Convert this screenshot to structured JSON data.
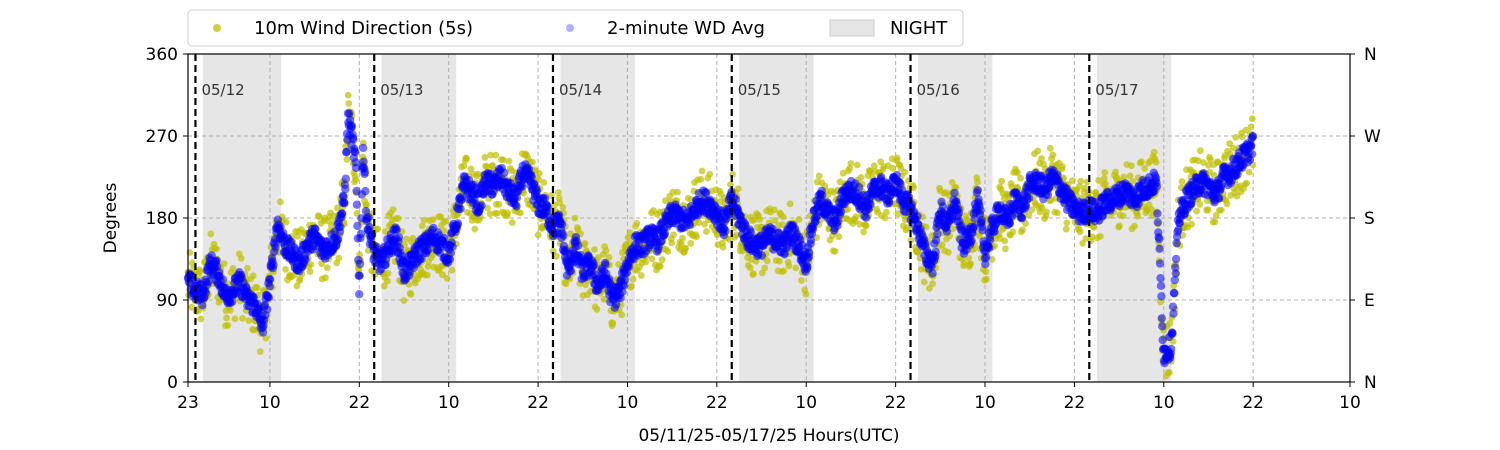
{
  "chart_data": {
    "type": "scatter",
    "xlabel": "05/11/25-05/17/25  Hours(UTC)",
    "ylabel": "Degrees",
    "xlim": [
      -1,
      155
    ],
    "ylim": [
      0,
      360
    ],
    "x_ticks": [
      {
        "t": -1,
        "label": "23"
      },
      {
        "t": 10,
        "label": "10"
      },
      {
        "t": 22,
        "label": "22"
      },
      {
        "t": 34,
        "label": "10"
      },
      {
        "t": 46,
        "label": "22"
      },
      {
        "t": 58,
        "label": "10"
      },
      {
        "t": 70,
        "label": "22"
      },
      {
        "t": 82,
        "label": "10"
      },
      {
        "t": 94,
        "label": "22"
      },
      {
        "t": 106,
        "label": "10"
      },
      {
        "t": 118,
        "label": "22"
      },
      {
        "t": 130,
        "label": "10"
      },
      {
        "t": 142,
        "label": "22"
      },
      {
        "t": 155,
        "label": "10"
      }
    ],
    "y_ticks": [
      0,
      90,
      180,
      270,
      360
    ],
    "y_right_ticks": [
      {
        "v": 0,
        "label": "N"
      },
      {
        "v": 90,
        "label": "E"
      },
      {
        "v": 180,
        "label": "S"
      },
      {
        "v": 270,
        "label": "W"
      },
      {
        "v": 360,
        "label": "N"
      }
    ],
    "grid": true,
    "legend_position": "top-left, above plot",
    "night_shading": [
      [
        1,
        11.5
      ],
      [
        25,
        35
      ],
      [
        49,
        59
      ],
      [
        73,
        83
      ],
      [
        97,
        107
      ],
      [
        121,
        131
      ]
    ],
    "day_markers": [
      {
        "t": 0,
        "label": "05/12"
      },
      {
        "t": 24,
        "label": "05/13"
      },
      {
        "t": 48,
        "label": "05/14"
      },
      {
        "t": 72,
        "label": "05/15"
      },
      {
        "t": 96,
        "label": "05/16"
      },
      {
        "t": 120,
        "label": "05/17"
      }
    ],
    "series": [
      {
        "name": "10m Wind Direction (5s)",
        "color": "#bfbf00",
        "marker": "circle",
        "spread_deg": 35,
        "trace": [
          [
            -1,
            110
          ],
          [
            0,
            100
          ],
          [
            1,
            95
          ],
          [
            2,
            130
          ],
          [
            3,
            120
          ],
          [
            4,
            95
          ],
          [
            5,
            100
          ],
          [
            6,
            110
          ],
          [
            7,
            90
          ],
          [
            8,
            85
          ],
          [
            9,
            60
          ],
          [
            10,
            110
          ],
          [
            11,
            175
          ],
          [
            12,
            150
          ],
          [
            13,
            140
          ],
          [
            14,
            130
          ],
          [
            15,
            150
          ],
          [
            16,
            160
          ],
          [
            17,
            145
          ],
          [
            18,
            150
          ],
          [
            19,
            160
          ],
          [
            20,
            200
          ],
          [
            20.5,
            290
          ],
          [
            21,
            270
          ],
          [
            21.5,
            240
          ],
          [
            22,
            100
          ],
          [
            22.5,
            260
          ],
          [
            23,
            180
          ],
          [
            24,
            140
          ],
          [
            25,
            130
          ],
          [
            26,
            150
          ],
          [
            27,
            160
          ],
          [
            28,
            120
          ],
          [
            29,
            130
          ],
          [
            30,
            145
          ],
          [
            31,
            150
          ],
          [
            32,
            160
          ],
          [
            33,
            150
          ],
          [
            34,
            140
          ],
          [
            35,
            175
          ],
          [
            36,
            215
          ],
          [
            37,
            210
          ],
          [
            38,
            195
          ],
          [
            39,
            220
          ],
          [
            40,
            215
          ],
          [
            41,
            225
          ],
          [
            42,
            210
          ],
          [
            43,
            200
          ],
          [
            44,
            230
          ],
          [
            45,
            220
          ],
          [
            46,
            195
          ],
          [
            47,
            190
          ],
          [
            48,
            170
          ],
          [
            49,
            175
          ],
          [
            50,
            120
          ],
          [
            51,
            150
          ],
          [
            52,
            120
          ],
          [
            53,
            130
          ],
          [
            54,
            105
          ],
          [
            55,
            120
          ],
          [
            56,
            90
          ],
          [
            57,
            100
          ],
          [
            58,
            130
          ],
          [
            59,
            150
          ],
          [
            60,
            150
          ],
          [
            61,
            160
          ],
          [
            62,
            155
          ],
          [
            63,
            170
          ],
          [
            64,
            185
          ],
          [
            65,
            180
          ],
          [
            66,
            175
          ],
          [
            67,
            190
          ],
          [
            68,
            200
          ],
          [
            69,
            195
          ],
          [
            70,
            185
          ],
          [
            71,
            170
          ],
          [
            72,
            200
          ],
          [
            73,
            180
          ],
          [
            74,
            160
          ],
          [
            75,
            150
          ],
          [
            76,
            150
          ],
          [
            77,
            160
          ],
          [
            78,
            155
          ],
          [
            79,
            150
          ],
          [
            80,
            165
          ],
          [
            81,
            150
          ],
          [
            82,
            130
          ],
          [
            83,
            180
          ],
          [
            84,
            200
          ],
          [
            85,
            185
          ],
          [
            86,
            175
          ],
          [
            87,
            205
          ],
          [
            88,
            210
          ],
          [
            89,
            205
          ],
          [
            90,
            190
          ],
          [
            91,
            210
          ],
          [
            92,
            215
          ],
          [
            93,
            205
          ],
          [
            94,
            220
          ],
          [
            95,
            200
          ],
          [
            96,
            190
          ],
          [
            97,
            170
          ],
          [
            98,
            140
          ],
          [
            99,
            130
          ],
          [
            100,
            190
          ],
          [
            101,
            170
          ],
          [
            102,
            200
          ],
          [
            103,
            150
          ],
          [
            104,
            160
          ],
          [
            105,
            200
          ],
          [
            106,
            140
          ],
          [
            107,
            170
          ],
          [
            108,
            190
          ],
          [
            109,
            175
          ],
          [
            110,
            200
          ],
          [
            111,
            190
          ],
          [
            112,
            215
          ],
          [
            113,
            220
          ],
          [
            114,
            210
          ],
          [
            115,
            225
          ],
          [
            116,
            215
          ],
          [
            117,
            200
          ],
          [
            118,
            190
          ],
          [
            119,
            185
          ],
          [
            120,
            190
          ],
          [
            121,
            185
          ],
          [
            122,
            195
          ],
          [
            123,
            200
          ],
          [
            124,
            205
          ],
          [
            125,
            210
          ],
          [
            126,
            200
          ],
          [
            127,
            210
          ],
          [
            128,
            215
          ],
          [
            129,
            220
          ],
          [
            130,
            30
          ],
          [
            131,
            40
          ],
          [
            132,
            180
          ],
          [
            133,
            200
          ],
          [
            134,
            210
          ],
          [
            135,
            220
          ],
          [
            136,
            215
          ],
          [
            137,
            205
          ],
          [
            138,
            225
          ],
          [
            139,
            230
          ],
          [
            140,
            240
          ],
          [
            141,
            250
          ],
          [
            142,
            260
          ]
        ]
      },
      {
        "name": "2-minute WD Avg",
        "color": "#0000ff",
        "marker": "circle",
        "spread_deg": 12,
        "trace": [
          [
            -1,
            110
          ],
          [
            0,
            100
          ],
          [
            1,
            95
          ],
          [
            2,
            130
          ],
          [
            3,
            120
          ],
          [
            4,
            95
          ],
          [
            5,
            100
          ],
          [
            6,
            110
          ],
          [
            7,
            90
          ],
          [
            8,
            85
          ],
          [
            9,
            60
          ],
          [
            10,
            110
          ],
          [
            11,
            175
          ],
          [
            12,
            150
          ],
          [
            13,
            140
          ],
          [
            14,
            130
          ],
          [
            15,
            150
          ],
          [
            16,
            160
          ],
          [
            17,
            145
          ],
          [
            18,
            150
          ],
          [
            19,
            160
          ],
          [
            20,
            200
          ],
          [
            20.5,
            290
          ],
          [
            21,
            270
          ],
          [
            21.5,
            240
          ],
          [
            22,
            100
          ],
          [
            22.5,
            260
          ],
          [
            23,
            180
          ],
          [
            24,
            140
          ],
          [
            25,
            130
          ],
          [
            26,
            150
          ],
          [
            27,
            160
          ],
          [
            28,
            120
          ],
          [
            29,
            130
          ],
          [
            30,
            145
          ],
          [
            31,
            150
          ],
          [
            32,
            160
          ],
          [
            33,
            150
          ],
          [
            34,
            140
          ],
          [
            35,
            175
          ],
          [
            36,
            215
          ],
          [
            37,
            210
          ],
          [
            38,
            195
          ],
          [
            39,
            220
          ],
          [
            40,
            215
          ],
          [
            41,
            225
          ],
          [
            42,
            210
          ],
          [
            43,
            200
          ],
          [
            44,
            230
          ],
          [
            45,
            220
          ],
          [
            46,
            195
          ],
          [
            47,
            190
          ],
          [
            48,
            170
          ],
          [
            49,
            175
          ],
          [
            50,
            120
          ],
          [
            51,
            150
          ],
          [
            52,
            120
          ],
          [
            53,
            130
          ],
          [
            54,
            105
          ],
          [
            55,
            120
          ],
          [
            56,
            90
          ],
          [
            57,
            100
          ],
          [
            58,
            130
          ],
          [
            59,
            150
          ],
          [
            60,
            150
          ],
          [
            61,
            160
          ],
          [
            62,
            155
          ],
          [
            63,
            170
          ],
          [
            64,
            185
          ],
          [
            65,
            180
          ],
          [
            66,
            175
          ],
          [
            67,
            190
          ],
          [
            68,
            200
          ],
          [
            69,
            195
          ],
          [
            70,
            185
          ],
          [
            71,
            170
          ],
          [
            72,
            200
          ],
          [
            73,
            180
          ],
          [
            74,
            160
          ],
          [
            75,
            150
          ],
          [
            76,
            150
          ],
          [
            77,
            160
          ],
          [
            78,
            155
          ],
          [
            79,
            150
          ],
          [
            80,
            165
          ],
          [
            81,
            150
          ],
          [
            82,
            130
          ],
          [
            83,
            180
          ],
          [
            84,
            200
          ],
          [
            85,
            185
          ],
          [
            86,
            175
          ],
          [
            87,
            205
          ],
          [
            88,
            210
          ],
          [
            89,
            205
          ],
          [
            90,
            190
          ],
          [
            91,
            210
          ],
          [
            92,
            215
          ],
          [
            93,
            205
          ],
          [
            94,
            220
          ],
          [
            95,
            200
          ],
          [
            96,
            190
          ],
          [
            97,
            170
          ],
          [
            98,
            140
          ],
          [
            99,
            130
          ],
          [
            100,
            190
          ],
          [
            101,
            170
          ],
          [
            102,
            200
          ],
          [
            103,
            150
          ],
          [
            104,
            160
          ],
          [
            105,
            200
          ],
          [
            106,
            140
          ],
          [
            107,
            170
          ],
          [
            108,
            190
          ],
          [
            109,
            175
          ],
          [
            110,
            200
          ],
          [
            111,
            190
          ],
          [
            112,
            215
          ],
          [
            113,
            220
          ],
          [
            114,
            210
          ],
          [
            115,
            225
          ],
          [
            116,
            215
          ],
          [
            117,
            200
          ],
          [
            118,
            190
          ],
          [
            119,
            185
          ],
          [
            120,
            190
          ],
          [
            121,
            185
          ],
          [
            122,
            195
          ],
          [
            123,
            200
          ],
          [
            124,
            205
          ],
          [
            125,
            210
          ],
          [
            126,
            200
          ],
          [
            127,
            210
          ],
          [
            128,
            215
          ],
          [
            129,
            220
          ],
          [
            130,
            30
          ],
          [
            131,
            40
          ],
          [
            132,
            180
          ],
          [
            133,
            200
          ],
          [
            134,
            210
          ],
          [
            135,
            220
          ],
          [
            136,
            215
          ],
          [
            137,
            205
          ],
          [
            138,
            225
          ],
          [
            139,
            230
          ],
          [
            140,
            240
          ],
          [
            141,
            250
          ],
          [
            142,
            260
          ]
        ]
      },
      {
        "name": "NIGHT",
        "color": "#e6e6e6",
        "marker": "patch"
      }
    ]
  }
}
